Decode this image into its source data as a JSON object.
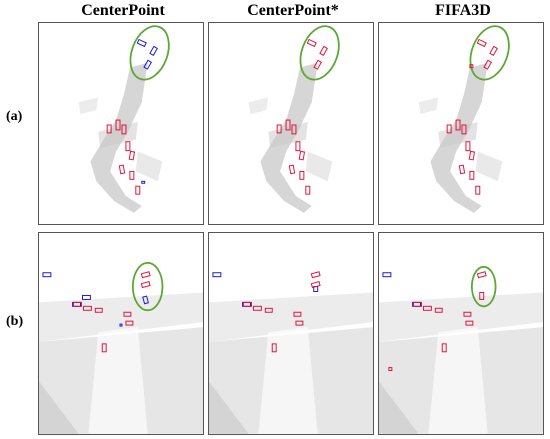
{
  "figure": {
    "columns": [
      "CenterPoint",
      "CenterPoint*",
      "FIFA3D"
    ],
    "rows": [
      "(a)",
      "(b)"
    ]
  },
  "colors": {
    "prediction_box": "#e0143c",
    "ground_truth_box": "#1a1ad6",
    "highlight_ellipse": "#5aa832",
    "point_cloud": "#c8c8c8"
  },
  "icons": [
    "lidar-point-cloud",
    "bounding-box",
    "highlight-ellipse"
  ]
}
